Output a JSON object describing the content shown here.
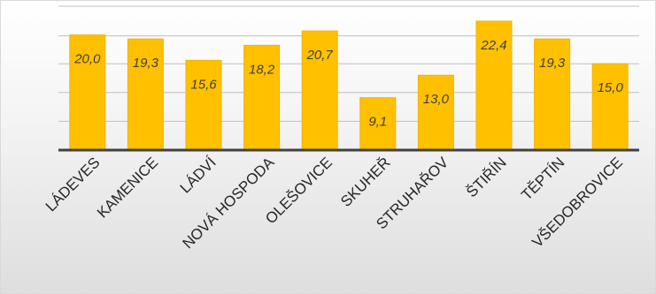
{
  "chart_data": {
    "type": "bar",
    "categories": [
      "LÁDEVES",
      "KAMENICE",
      "LÁDVÍ",
      "NOVÁ HOSPODA",
      "OLEŠOVICE",
      "SKUHEŘ",
      "STRUHAŘOV",
      "ŠTIŘÍN",
      "TĚPTÍN",
      "VŠEDOBROVICE"
    ],
    "values": [
      20.0,
      19.3,
      15.6,
      18.2,
      20.7,
      9.1,
      13.0,
      22.4,
      19.3,
      15.0
    ],
    "value_labels": [
      "20,0",
      "19,3",
      "15,6",
      "18,2",
      "20,7",
      "9,1",
      "13,0",
      "22,4",
      "19,3",
      "15,0"
    ],
    "ylim": [
      0,
      25
    ],
    "grid": true,
    "legend": "none",
    "colors": {
      "bar": "#FFC000",
      "bar_edge": "#F2B300",
      "axis": "#404040",
      "grid": "#bfbfbf"
    }
  }
}
